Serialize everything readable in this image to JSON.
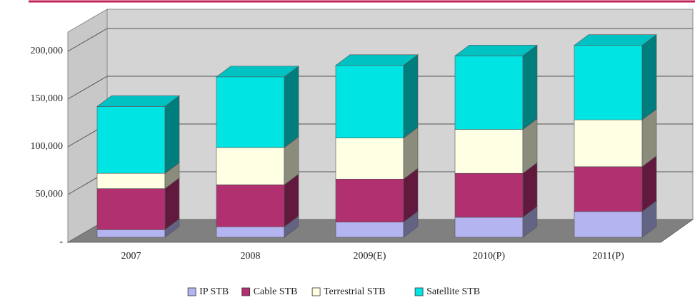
{
  "chart_data": {
    "type": "bar3d_stacked",
    "categories": [
      "2007",
      "2008",
      "2009(E)",
      "2010(P)",
      "2011(P)"
    ],
    "series": [
      {
        "name": "IP STB",
        "color": "#b4b4f0",
        "values": [
          8000,
          11000,
          16000,
          21000,
          27000
        ]
      },
      {
        "name": "Cable STB",
        "color": "#b03070",
        "values": [
          43000,
          44000,
          45000,
          46000,
          47000
        ]
      },
      {
        "name": "Terrestrial STB",
        "color": "#ffffe4",
        "values": [
          16000,
          39000,
          43000,
          46000,
          49000
        ]
      },
      {
        "name": "Satellite STB",
        "color": "#00e4e4",
        "values": [
          70000,
          74000,
          76000,
          77000,
          78000
        ]
      }
    ],
    "ylim": [
      0,
      220000
    ],
    "yticks": [
      {
        "value": 0,
        "label": "-"
      },
      {
        "value": 50000,
        "label": "50,000"
      },
      {
        "value": 100000,
        "label": "100,000"
      },
      {
        "value": 150000,
        "label": "150,000"
      },
      {
        "value": 200000,
        "label": "200,000"
      }
    ],
    "grid": true
  }
}
